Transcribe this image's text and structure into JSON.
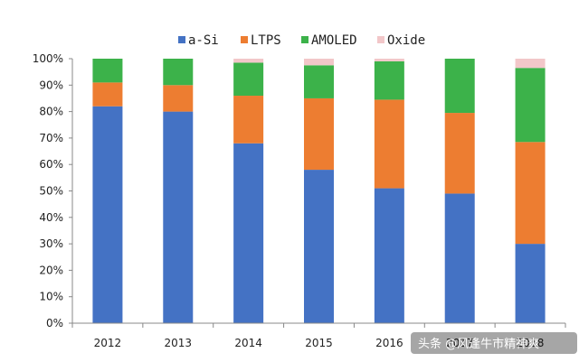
{
  "chart_data": {
    "type": "bar",
    "stacked": true,
    "categories": [
      "2012",
      "2013",
      "2014",
      "2015",
      "2016",
      "2017",
      "2018"
    ],
    "series": [
      {
        "name": "a-Si",
        "color": "#4472C4",
        "values": [
          82,
          80,
          68,
          58,
          51,
          49,
          30
        ]
      },
      {
        "name": "LTPS",
        "color": "#ED7D31",
        "values": [
          9,
          10,
          18,
          27,
          33.5,
          30.5,
          38.5
        ]
      },
      {
        "name": "AMOLED",
        "color": "#3CB24A",
        "values": [
          9,
          10,
          12.5,
          12.5,
          14.5,
          20.5,
          28
        ]
      },
      {
        "name": "Oxide",
        "color": "#F2C7C9",
        "values": [
          0,
          0,
          1.5,
          2.5,
          1,
          0,
          3.5
        ]
      }
    ],
    "ylim": [
      0,
      100
    ],
    "yticks": [
      "0%",
      "10%",
      "20%",
      "30%",
      "40%",
      "50%",
      "60%",
      "70%",
      "80%",
      "90%",
      "100%"
    ],
    "legend_position": "top",
    "grid": false
  },
  "watermark": "头条 @风逢牛市精神爽"
}
